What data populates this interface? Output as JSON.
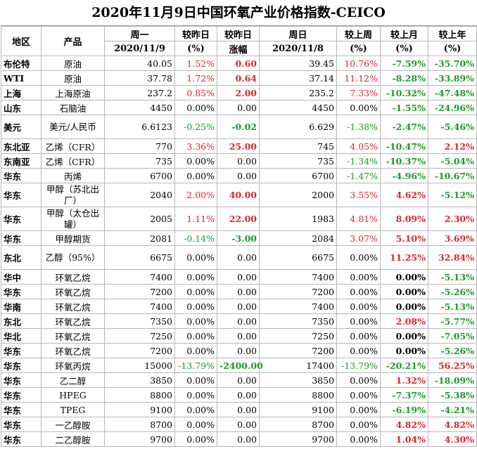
{
  "title": "2020年11月9日中国环氧产业价格指数-CEICO",
  "headers": {
    "region": "地区",
    "product": "产品",
    "monday": "周一",
    "monday_date": "2020/11/9",
    "vs_prev_day": "较昨日",
    "pct": "(%)",
    "vs_prev_day2": "较昨日",
    "change": "涨幅",
    "sunday": "周日",
    "sunday_date": "2020/11/8",
    "vs_last_week": "较上周",
    "vs_last_month": "较上月",
    "vs_last_year": "较上年"
  },
  "colors": {
    "up": "#e0242c",
    "down": "#1a9a2a",
    "neutral": "#000000"
  },
  "rows": [
    {
      "region": "布伦特",
      "product": "原油",
      "mon": "40.05",
      "dpct": "1.52%",
      "dchg": "0.60",
      "sun": "39.45",
      "wk": "10.76%",
      "mo": "-7.59%",
      "yr": "-35.70%",
      "c": [
        "red",
        "red",
        "red",
        "green",
        "green"
      ]
    },
    {
      "region": "WTI",
      "product": "原油",
      "mon": "37.78",
      "dpct": "1.72%",
      "dchg": "0.64",
      "sun": "37.14",
      "wk": "11.12%",
      "mo": "-8.28%",
      "yr": "-33.89%",
      "c": [
        "red",
        "red",
        "red",
        "green",
        "green"
      ]
    },
    {
      "region": "上海",
      "product": "上海原油",
      "mon": "237.2",
      "dpct": "0.85%",
      "dchg": "2.00",
      "sun": "235.2",
      "wk": "7.33%",
      "mo": "-10.32%",
      "yr": "-47.48%",
      "c": [
        "red",
        "red",
        "red",
        "green",
        "green"
      ]
    },
    {
      "region": "山东",
      "product": "石脑油",
      "mon": "4450",
      "dpct": "0.00%",
      "dchg": "0.00",
      "sun": "4450",
      "wk": "0.00%",
      "mo": "-1.55%",
      "yr": "-24.96%",
      "c": [
        "",
        "",
        "",
        "green",
        "green"
      ]
    },
    {
      "region": "美元",
      "product": "美元/人民币",
      "mon": "6.6123",
      "dpct": "-0.25%",
      "dchg": "-0.02",
      "sun": "6.629",
      "wk": "-1.38%",
      "mo": "-2.47%",
      "yr": "-5.46%",
      "c": [
        "green",
        "green",
        "green",
        "green",
        "green"
      ],
      "tall": true
    },
    {
      "region": "东北亚",
      "product": "乙烯（CFR）",
      "mon": "770",
      "dpct": "3.36%",
      "dchg": "25.00",
      "sun": "745",
      "wk": "4.05%",
      "mo": "-10.47%",
      "yr": "2.12%",
      "c": [
        "red",
        "red",
        "red",
        "green",
        "red"
      ]
    },
    {
      "region": "东南亚",
      "product": "乙烯（CFR）",
      "mon": "735",
      "dpct": "0.00%",
      "dchg": "0.00",
      "sun": "735",
      "wk": "-1.34%",
      "mo": "-10.37%",
      "yr": "-5.04%",
      "c": [
        "",
        "",
        "green",
        "green",
        "green"
      ]
    },
    {
      "region": "华东",
      "product": "丙烯",
      "mon": "6700",
      "dpct": "0.00%",
      "dchg": "0.00",
      "sun": "6700",
      "wk": "-1.47%",
      "mo": "-4.96%",
      "yr": "-10.67%",
      "c": [
        "",
        "",
        "green",
        "green",
        "green"
      ]
    },
    {
      "region": "华东",
      "product": "甲醇（苏北出厂）",
      "mon": "2040",
      "dpct": "2.00%",
      "dchg": "40.00",
      "sun": "2000",
      "wk": "3.55%",
      "mo": "4.62%",
      "yr": "-5.12%",
      "c": [
        "red",
        "red",
        "red",
        "red",
        "green"
      ],
      "tall": true
    },
    {
      "region": "华东",
      "product": "甲醇（太仓出罐）",
      "mon": "2005",
      "dpct": "1.11%",
      "dchg": "22.00",
      "sun": "1983",
      "wk": "4.81%",
      "mo": "8.09%",
      "yr": "2.30%",
      "c": [
        "red",
        "red",
        "red",
        "red",
        "red"
      ],
      "tall": true
    },
    {
      "region": "华东",
      "product": "甲醇期货",
      "mon": "2081",
      "dpct": "-0.14%",
      "dchg": "-3.00",
      "sun": "2084",
      "wk": "3.07%",
      "mo": "5.10%",
      "yr": "3.69%",
      "c": [
        "green",
        "green",
        "red",
        "red",
        "red"
      ]
    },
    {
      "region": "东北",
      "product": "乙醇（95%）",
      "mon": "6675",
      "dpct": "0.00%",
      "dchg": "0.00",
      "sun": "6675",
      "wk": "0.00%",
      "mo": "11.25%",
      "yr": "32.84%",
      "c": [
        "",
        "",
        "",
        "red",
        "red"
      ],
      "tall": true
    },
    {
      "region": "华中",
      "product": "环氧乙烷",
      "mon": "7400",
      "dpct": "0.00%",
      "dchg": "0.00",
      "sun": "7400",
      "wk": "0.00%",
      "mo": "0.00%",
      "yr": "-5.13%",
      "c": [
        "",
        "",
        "",
        "",
        "green"
      ]
    },
    {
      "region": "华东",
      "product": "环氧乙烷",
      "mon": "7200",
      "dpct": "0.00%",
      "dchg": "0.00",
      "sun": "7200",
      "wk": "0.00%",
      "mo": "0.00%",
      "yr": "-5.26%",
      "c": [
        "",
        "",
        "",
        "",
        "green"
      ]
    },
    {
      "region": "华南",
      "product": "环氧乙烷",
      "mon": "7400",
      "dpct": "0.00%",
      "dchg": "0.00",
      "sun": "7400",
      "wk": "0.00%",
      "mo": "0.00%",
      "yr": "-5.13%",
      "c": [
        "",
        "",
        "",
        "",
        "green"
      ]
    },
    {
      "region": "东北",
      "product": "环氧乙烷",
      "mon": "7350",
      "dpct": "0.00%",
      "dchg": "0.00",
      "sun": "7350",
      "wk": "0.00%",
      "mo": "2.08%",
      "yr": "-5.77%",
      "c": [
        "",
        "",
        "",
        "red",
        "green"
      ]
    },
    {
      "region": "华北",
      "product": "环氧乙烷",
      "mon": "7250",
      "dpct": "0.00%",
      "dchg": "0.00",
      "sun": "7250",
      "wk": "0.00%",
      "mo": "0.00%",
      "yr": "-7.05%",
      "c": [
        "",
        "",
        "",
        "",
        "green"
      ]
    },
    {
      "region": "华东",
      "product": "环氧乙烷",
      "mon": "7200",
      "dpct": "0.00%",
      "dchg": "0.00",
      "sun": "7200",
      "wk": "0.00%",
      "mo": "0.00%",
      "yr": "-5.26%",
      "c": [
        "",
        "",
        "",
        "",
        "green"
      ]
    },
    {
      "region": "华东",
      "product": "环氧丙烷",
      "mon": "15000",
      "dpct": "-13.79%",
      "dchg": "-2400.00",
      "sun": "17400",
      "wk": "-13.79%",
      "mo": "-20.21%",
      "yr": "56.25%",
      "c": [
        "green",
        "green",
        "green",
        "green",
        "red"
      ]
    },
    {
      "region": "华东",
      "product": "乙二醇",
      "mon": "3850",
      "dpct": "0.00%",
      "dchg": "0.00",
      "sun": "3850",
      "wk": "0.00%",
      "mo": "1.32%",
      "yr": "-18.09%",
      "c": [
        "",
        "",
        "",
        "red",
        "green"
      ]
    },
    {
      "region": "华东",
      "product": "HPEG",
      "mon": "8800",
      "dpct": "0.00%",
      "dchg": "0.00",
      "sun": "8800",
      "wk": "0.00%",
      "mo": "-7.37%",
      "yr": "-5.38%",
      "c": [
        "",
        "",
        "",
        "green",
        "green"
      ]
    },
    {
      "region": "华东",
      "product": "TPEG",
      "mon": "9100",
      "dpct": "0.00%",
      "dchg": "0.00",
      "sun": "9100",
      "wk": "0.00%",
      "mo": "-6.19%",
      "yr": "-4.21%",
      "c": [
        "",
        "",
        "",
        "green",
        "green"
      ]
    },
    {
      "region": "华东",
      "product": "一乙醇胺",
      "mon": "8700",
      "dpct": "0.00%",
      "dchg": "0.00",
      "sun": "8700",
      "wk": "0.00%",
      "mo": "4.82%",
      "yr": "4.82%",
      "c": [
        "",
        "",
        "",
        "red",
        "red"
      ]
    },
    {
      "region": "华东",
      "product": "二乙醇胺",
      "mon": "9700",
      "dpct": "0.00%",
      "dchg": "0.00",
      "sun": "9700",
      "wk": "0.00%",
      "mo": "1.04%",
      "yr": "4.30%",
      "c": [
        "",
        "",
        "",
        "red",
        "red"
      ]
    }
  ]
}
